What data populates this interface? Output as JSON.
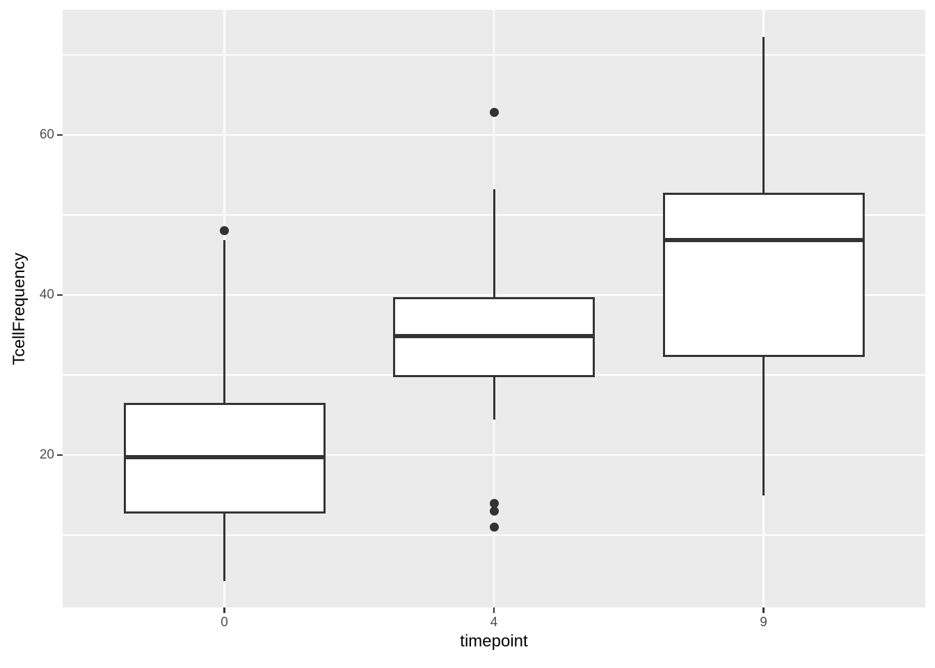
{
  "chart_data": {
    "type": "boxplot",
    "title": "",
    "xlabel": "timepoint",
    "ylabel": "TcellFrequency",
    "categories": [
      "0",
      "4",
      "9"
    ],
    "y_ticks": [
      {
        "value": 20,
        "label": "20"
      },
      {
        "value": 40,
        "label": "40"
      },
      {
        "value": 60,
        "label": "60"
      }
    ],
    "y_minor_ticks": [
      10,
      30,
      50,
      70
    ],
    "ylim": [
      0.96,
      75.65
    ],
    "grid": true,
    "legend_position": "none",
    "series": [
      {
        "category": "0",
        "lower_whisker": 4.3,
        "q1": 12.7,
        "median": 19.7,
        "q3": 26.5,
        "upper_whisker": 46.9,
        "outliers": [
          48.0
        ]
      },
      {
        "category": "4",
        "lower_whisker": 24.4,
        "q1": 29.7,
        "median": 34.9,
        "q3": 39.7,
        "upper_whisker": 53.2,
        "outliers": [
          62.8,
          14.0,
          13.0,
          11.0
        ]
      },
      {
        "category": "9",
        "lower_whisker": 15.0,
        "q1": 32.3,
        "median": 46.9,
        "q3": 52.8,
        "upper_whisker": 72.3,
        "outliers": []
      }
    ],
    "colors": {
      "panel_background": "#EBEBEB",
      "gridline": "#FFFFFF",
      "box_fill": "#FFFFFF",
      "box_border": "#333333",
      "median": "#333333",
      "whisker": "#333333",
      "outlier": "#333333",
      "tick_label": "#4D4D4D",
      "tick_mark": "#333333",
      "axis_title": "#000000"
    }
  }
}
